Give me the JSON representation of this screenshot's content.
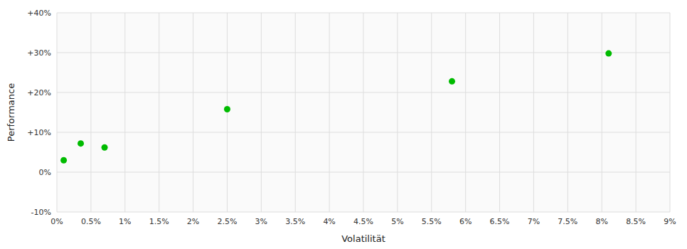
{
  "chart_data": {
    "type": "scatter",
    "xlabel": "Volatilität",
    "ylabel": "Performance",
    "x": [
      0.001,
      0.0035,
      0.007,
      0.025,
      0.058,
      0.081
    ],
    "values": [
      0.03,
      0.072,
      0.062,
      0.158,
      0.228,
      0.298
    ],
    "color": "#00bb00",
    "xlim": [
      0.0,
      0.09
    ],
    "ylim": [
      -0.1,
      0.4
    ],
    "xticks": [
      {
        "value": 0.0,
        "label": "0%"
      },
      {
        "value": 0.005,
        "label": "0.5%"
      },
      {
        "value": 0.01,
        "label": "1%"
      },
      {
        "value": 0.015,
        "label": "1.5%"
      },
      {
        "value": 0.02,
        "label": "2%"
      },
      {
        "value": 0.025,
        "label": "2.5%"
      },
      {
        "value": 0.03,
        "label": "3%"
      },
      {
        "value": 0.035,
        "label": "3.5%"
      },
      {
        "value": 0.04,
        "label": "4%"
      },
      {
        "value": 0.045,
        "label": "4.5%"
      },
      {
        "value": 0.05,
        "label": "5%"
      },
      {
        "value": 0.055,
        "label": "5.5%"
      },
      {
        "value": 0.06,
        "label": "6%"
      },
      {
        "value": 0.065,
        "label": "6.5%"
      },
      {
        "value": 0.07,
        "label": "7%"
      },
      {
        "value": 0.075,
        "label": "7.5%"
      },
      {
        "value": 0.08,
        "label": "8%"
      },
      {
        "value": 0.085,
        "label": "8.5%"
      },
      {
        "value": 0.09,
        "label": "9%"
      }
    ],
    "yticks": [
      {
        "value": -0.1,
        "label": "-10%"
      },
      {
        "value": 0.0,
        "label": "0%"
      },
      {
        "value": 0.1,
        "label": "+10%"
      },
      {
        "value": 0.2,
        "label": "+20%"
      },
      {
        "value": 0.3,
        "label": "+30%"
      },
      {
        "value": 0.4,
        "label": "+40%"
      }
    ],
    "grid": true
  }
}
